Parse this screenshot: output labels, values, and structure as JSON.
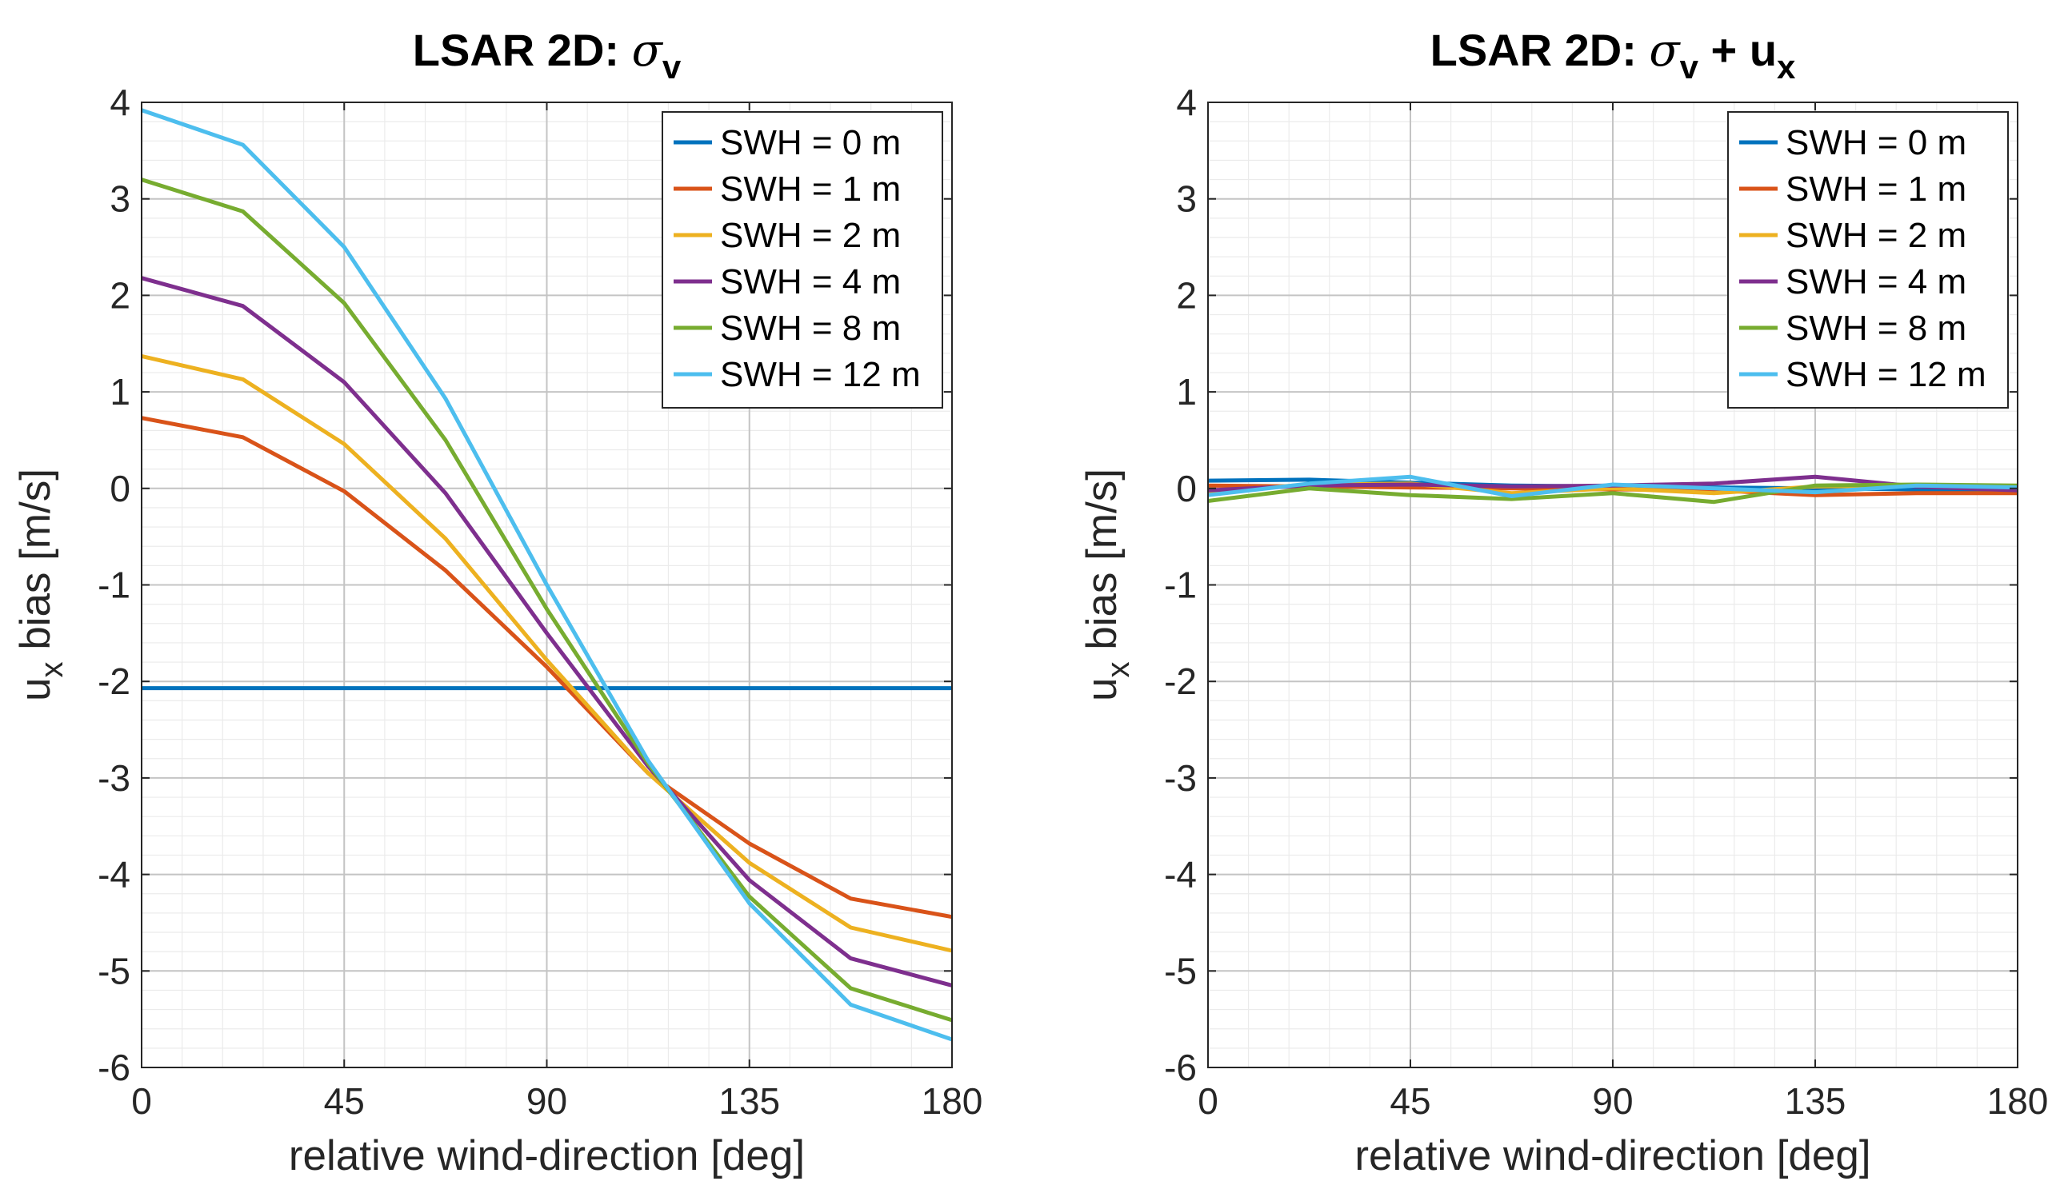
{
  "chart_data": [
    {
      "type": "line",
      "title": "LSAR 2D: ",
      "title_sigma": "σ",
      "title_sigma_sub": "v",
      "title_suffix": "",
      "title_suffix_sub": "",
      "xlabel": "relative wind-direction [deg]",
      "ylabel_main": "u",
      "ylabel_sub": "x",
      "ylabel_rest": " bias [m/s]",
      "xlim": [
        0,
        180
      ],
      "ylim": [
        -6,
        4
      ],
      "xticks": [
        0,
        45,
        90,
        135,
        180
      ],
      "yticks": [
        -6,
        -5,
        -4,
        -3,
        -2,
        -1,
        0,
        1,
        2,
        3,
        4
      ],
      "grid": true,
      "legend_position": "top-right",
      "x": [
        0,
        22.5,
        45,
        67.5,
        90,
        112.5,
        135,
        157.5,
        180
      ],
      "series": [
        {
          "name": "SWH =  0 m",
          "color": "#0072BD",
          "values": [
            -2.07,
            -2.07,
            -2.07,
            -2.07,
            -2.07,
            -2.07,
            -2.07,
            -2.07,
            -2.07
          ]
        },
        {
          "name": "SWH =  1 m",
          "color": "#D95319",
          "values": [
            0.73,
            0.53,
            -0.03,
            -0.85,
            -1.85,
            -2.95,
            -3.68,
            -4.25,
            -4.44
          ]
        },
        {
          "name": "SWH =  2 m",
          "color": "#EDB120",
          "values": [
            1.37,
            1.13,
            0.46,
            -0.52,
            -1.78,
            -2.95,
            -3.88,
            -4.55,
            -4.79
          ]
        },
        {
          "name": "SWH =  4 m",
          "color": "#7E2F8E",
          "values": [
            2.18,
            1.89,
            1.1,
            -0.05,
            -1.5,
            -2.88,
            -4.06,
            -4.87,
            -5.15
          ]
        },
        {
          "name": "SWH =  8 m",
          "color": "#77AC30",
          "values": [
            3.2,
            2.87,
            1.92,
            0.5,
            -1.25,
            -2.85,
            -4.23,
            -5.18,
            -5.51
          ]
        },
        {
          "name": "SWH = 12 m",
          "color": "#4DBEEE",
          "values": [
            3.92,
            3.56,
            2.5,
            0.93,
            -1.0,
            -2.82,
            -4.3,
            -5.35,
            -5.71
          ]
        }
      ]
    },
    {
      "type": "line",
      "title": "LSAR 2D: ",
      "title_sigma": "σ",
      "title_sigma_sub": "v",
      "title_suffix": " + u",
      "title_suffix_sub": "x",
      "xlabel": "relative wind-direction [deg]",
      "ylabel_main": "u",
      "ylabel_sub": "x",
      "ylabel_rest": " bias [m/s]",
      "xlim": [
        0,
        180
      ],
      "ylim": [
        -6,
        4
      ],
      "xticks": [
        0,
        45,
        90,
        135,
        180
      ],
      "yticks": [
        -6,
        -5,
        -4,
        -3,
        -2,
        -1,
        0,
        1,
        2,
        3,
        4
      ],
      "grid": true,
      "legend_position": "top-right",
      "x": [
        0,
        22.5,
        45,
        67.5,
        90,
        112.5,
        135,
        157.5,
        180
      ],
      "series": [
        {
          "name": "SWH =  0 m",
          "color": "#0072BD",
          "values": [
            0.08,
            0.09,
            0.06,
            0.03,
            0.02,
            0.01,
            0.0,
            -0.01,
            -0.02
          ]
        },
        {
          "name": "SWH =  1 m",
          "color": "#D95319",
          "values": [
            0.03,
            0.02,
            0.01,
            0.0,
            -0.01,
            -0.02,
            -0.07,
            -0.05,
            -0.05
          ]
        },
        {
          "name": "SWH =  2 m",
          "color": "#EDB120",
          "values": [
            -0.03,
            0.04,
            0.05,
            -0.05,
            0.0,
            -0.05,
            0.02,
            0.03,
            0.0
          ]
        },
        {
          "name": "SWH =  4 m",
          "color": "#7E2F8E",
          "values": [
            -0.02,
            0.03,
            0.04,
            0.02,
            0.03,
            0.05,
            0.12,
            0.02,
            -0.02
          ]
        },
        {
          "name": "SWH =  8 m",
          "color": "#77AC30",
          "values": [
            -0.13,
            0.0,
            -0.07,
            -0.11,
            -0.05,
            -0.14,
            0.03,
            0.04,
            0.03
          ]
        },
        {
          "name": "SWH = 12 m",
          "color": "#4DBEEE",
          "values": [
            -0.07,
            0.05,
            0.12,
            -0.08,
            0.04,
            0.0,
            -0.04,
            0.03,
            0.01
          ]
        }
      ]
    }
  ]
}
